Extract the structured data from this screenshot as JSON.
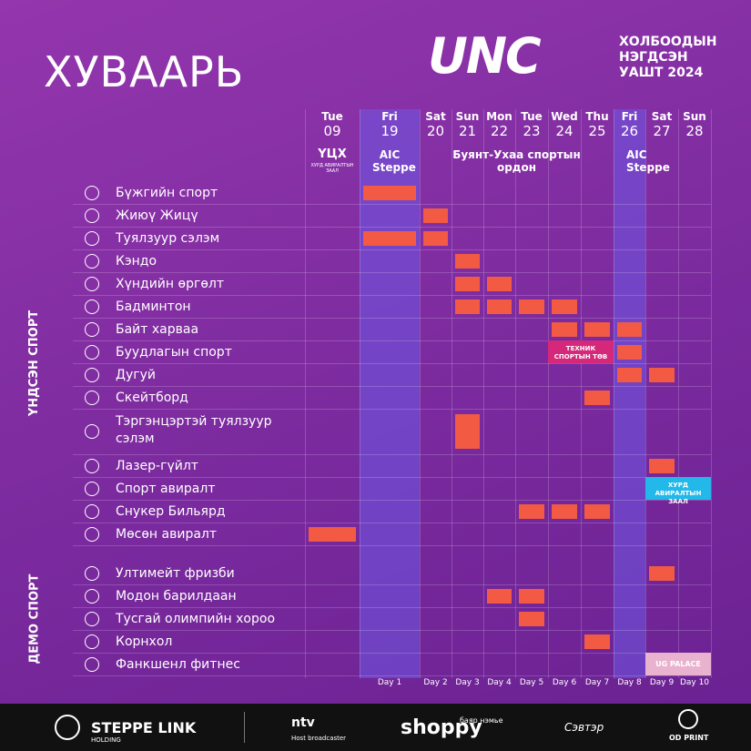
{
  "header": {
    "title": "ХУВААРЬ",
    "logo": "UNC",
    "logo_lines": [
      "ХОЛБООДЫН",
      "НЭГДСЭН",
      "УАШТ 2024"
    ]
  },
  "columns": [
    {
      "weekday": "Tue",
      "date": "09"
    },
    {
      "weekday": "Fri",
      "date": "19",
      "day": "Day 1",
      "highlight": true
    },
    {
      "weekday": "Sat",
      "date": "20",
      "day": "Day 2"
    },
    {
      "weekday": "Sun",
      "date": "21",
      "day": "Day 3"
    },
    {
      "weekday": "Mon",
      "date": "22",
      "day": "Day 4"
    },
    {
      "weekday": "Tue",
      "date": "23",
      "day": "Day 5"
    },
    {
      "weekday": "Wed",
      "date": "24",
      "day": "Day 6"
    },
    {
      "weekday": "Thu",
      "date": "25",
      "day": "Day 7"
    },
    {
      "weekday": "Fri",
      "date": "26",
      "day": "Day 8",
      "highlight": true
    },
    {
      "weekday": "Sat",
      "date": "27",
      "day": "Day 9"
    },
    {
      "weekday": "Sun",
      "date": "28",
      "day": "Day 10"
    }
  ],
  "venues": [
    {
      "label": "ҮЦХ",
      "sub": "ХУРД АВИРАЛТЫН ЗААЛ",
      "dates": [
        "09",
        "09"
      ]
    },
    {
      "label": "AIC Steppe",
      "dates": [
        "19",
        "19"
      ]
    },
    {
      "label": "Буянт-Ухаа спортын ордон",
      "dates": [
        "20",
        "25"
      ]
    },
    {
      "label": "AIC Steppe",
      "dates": [
        "26",
        "26"
      ]
    }
  ],
  "groups": [
    {
      "name": "ҮНДСЭН СПОРТ",
      "rows": [
        {
          "name": "Бүжгийн спорт",
          "dates": [
            "19"
          ]
        },
        {
          "name": "Жиюү Жицү",
          "dates": [
            "20"
          ]
        },
        {
          "name": "Туялзуур сэлэм",
          "dates": [
            "19",
            "20"
          ]
        },
        {
          "name": "Кэндо",
          "dates": [
            "21"
          ]
        },
        {
          "name": "Хүндийн өргөлт",
          "dates": [
            "21",
            "22"
          ]
        },
        {
          "name": "Бадминтон",
          "dates": [
            "21",
            "22",
            "23",
            "24"
          ]
        },
        {
          "name": "Байт харваа",
          "dates": [
            "24",
            "25",
            "26"
          ]
        },
        {
          "name": "Буудлагын спорт",
          "dates": [
            "26"
          ],
          "note": {
            "text": "ТЕХНИК СПОРТЫН ТӨВ",
            "dates": [
              "24",
              "25"
            ],
            "color": "#d6287a"
          }
        },
        {
          "name": "Дугуй",
          "dates": [
            "26",
            "27"
          ]
        },
        {
          "name": "Скейтборд",
          "dates": [
            "25"
          ]
        },
        {
          "name": "Тэргэнцэртэй туялзуур сэлэм",
          "dates": [
            "21"
          ],
          "tall": true
        },
        {
          "name": "Лазер-гүйлт",
          "dates": [
            "27"
          ]
        },
        {
          "name": "Спорт авиралт",
          "dates": [],
          "note": {
            "text": "ХУРД АВИРАЛТЫН ЗААЛ",
            "dates": [
              "27",
              "28"
            ],
            "color": "#22b8ea"
          }
        },
        {
          "name": "Снукер Бильярд",
          "dates": [
            "23",
            "24",
            "25"
          ]
        },
        {
          "name": "Мөсөн авиралт",
          "dates": [
            "09"
          ]
        }
      ]
    },
    {
      "name": "ДЕМО СПОРТ",
      "rows": [
        {
          "name": "Ултимейт фризби",
          "dates": [
            "27"
          ]
        },
        {
          "name": "Модон барилдаан",
          "dates": [
            "22",
            "23"
          ]
        },
        {
          "name": "Тусгай олимпийн хороо",
          "dates": [
            "23"
          ]
        },
        {
          "name": "Корнхол",
          "dates": [
            "25"
          ]
        },
        {
          "name": "Фанкшенл фитнес",
          "dates": [],
          "note": {
            "text": "UG PALACE",
            "dates": [
              "27",
              "28"
            ],
            "color": "#e9b3d0"
          }
        }
      ]
    }
  ],
  "footer": {
    "sponsors": [
      "STEPPE LINK",
      "HOLDING",
      "ntv",
      "Host broadcaster",
      "shoppy",
      "баяр нэмье",
      "Сэвтэр",
      "OD PRINT"
    ]
  }
}
